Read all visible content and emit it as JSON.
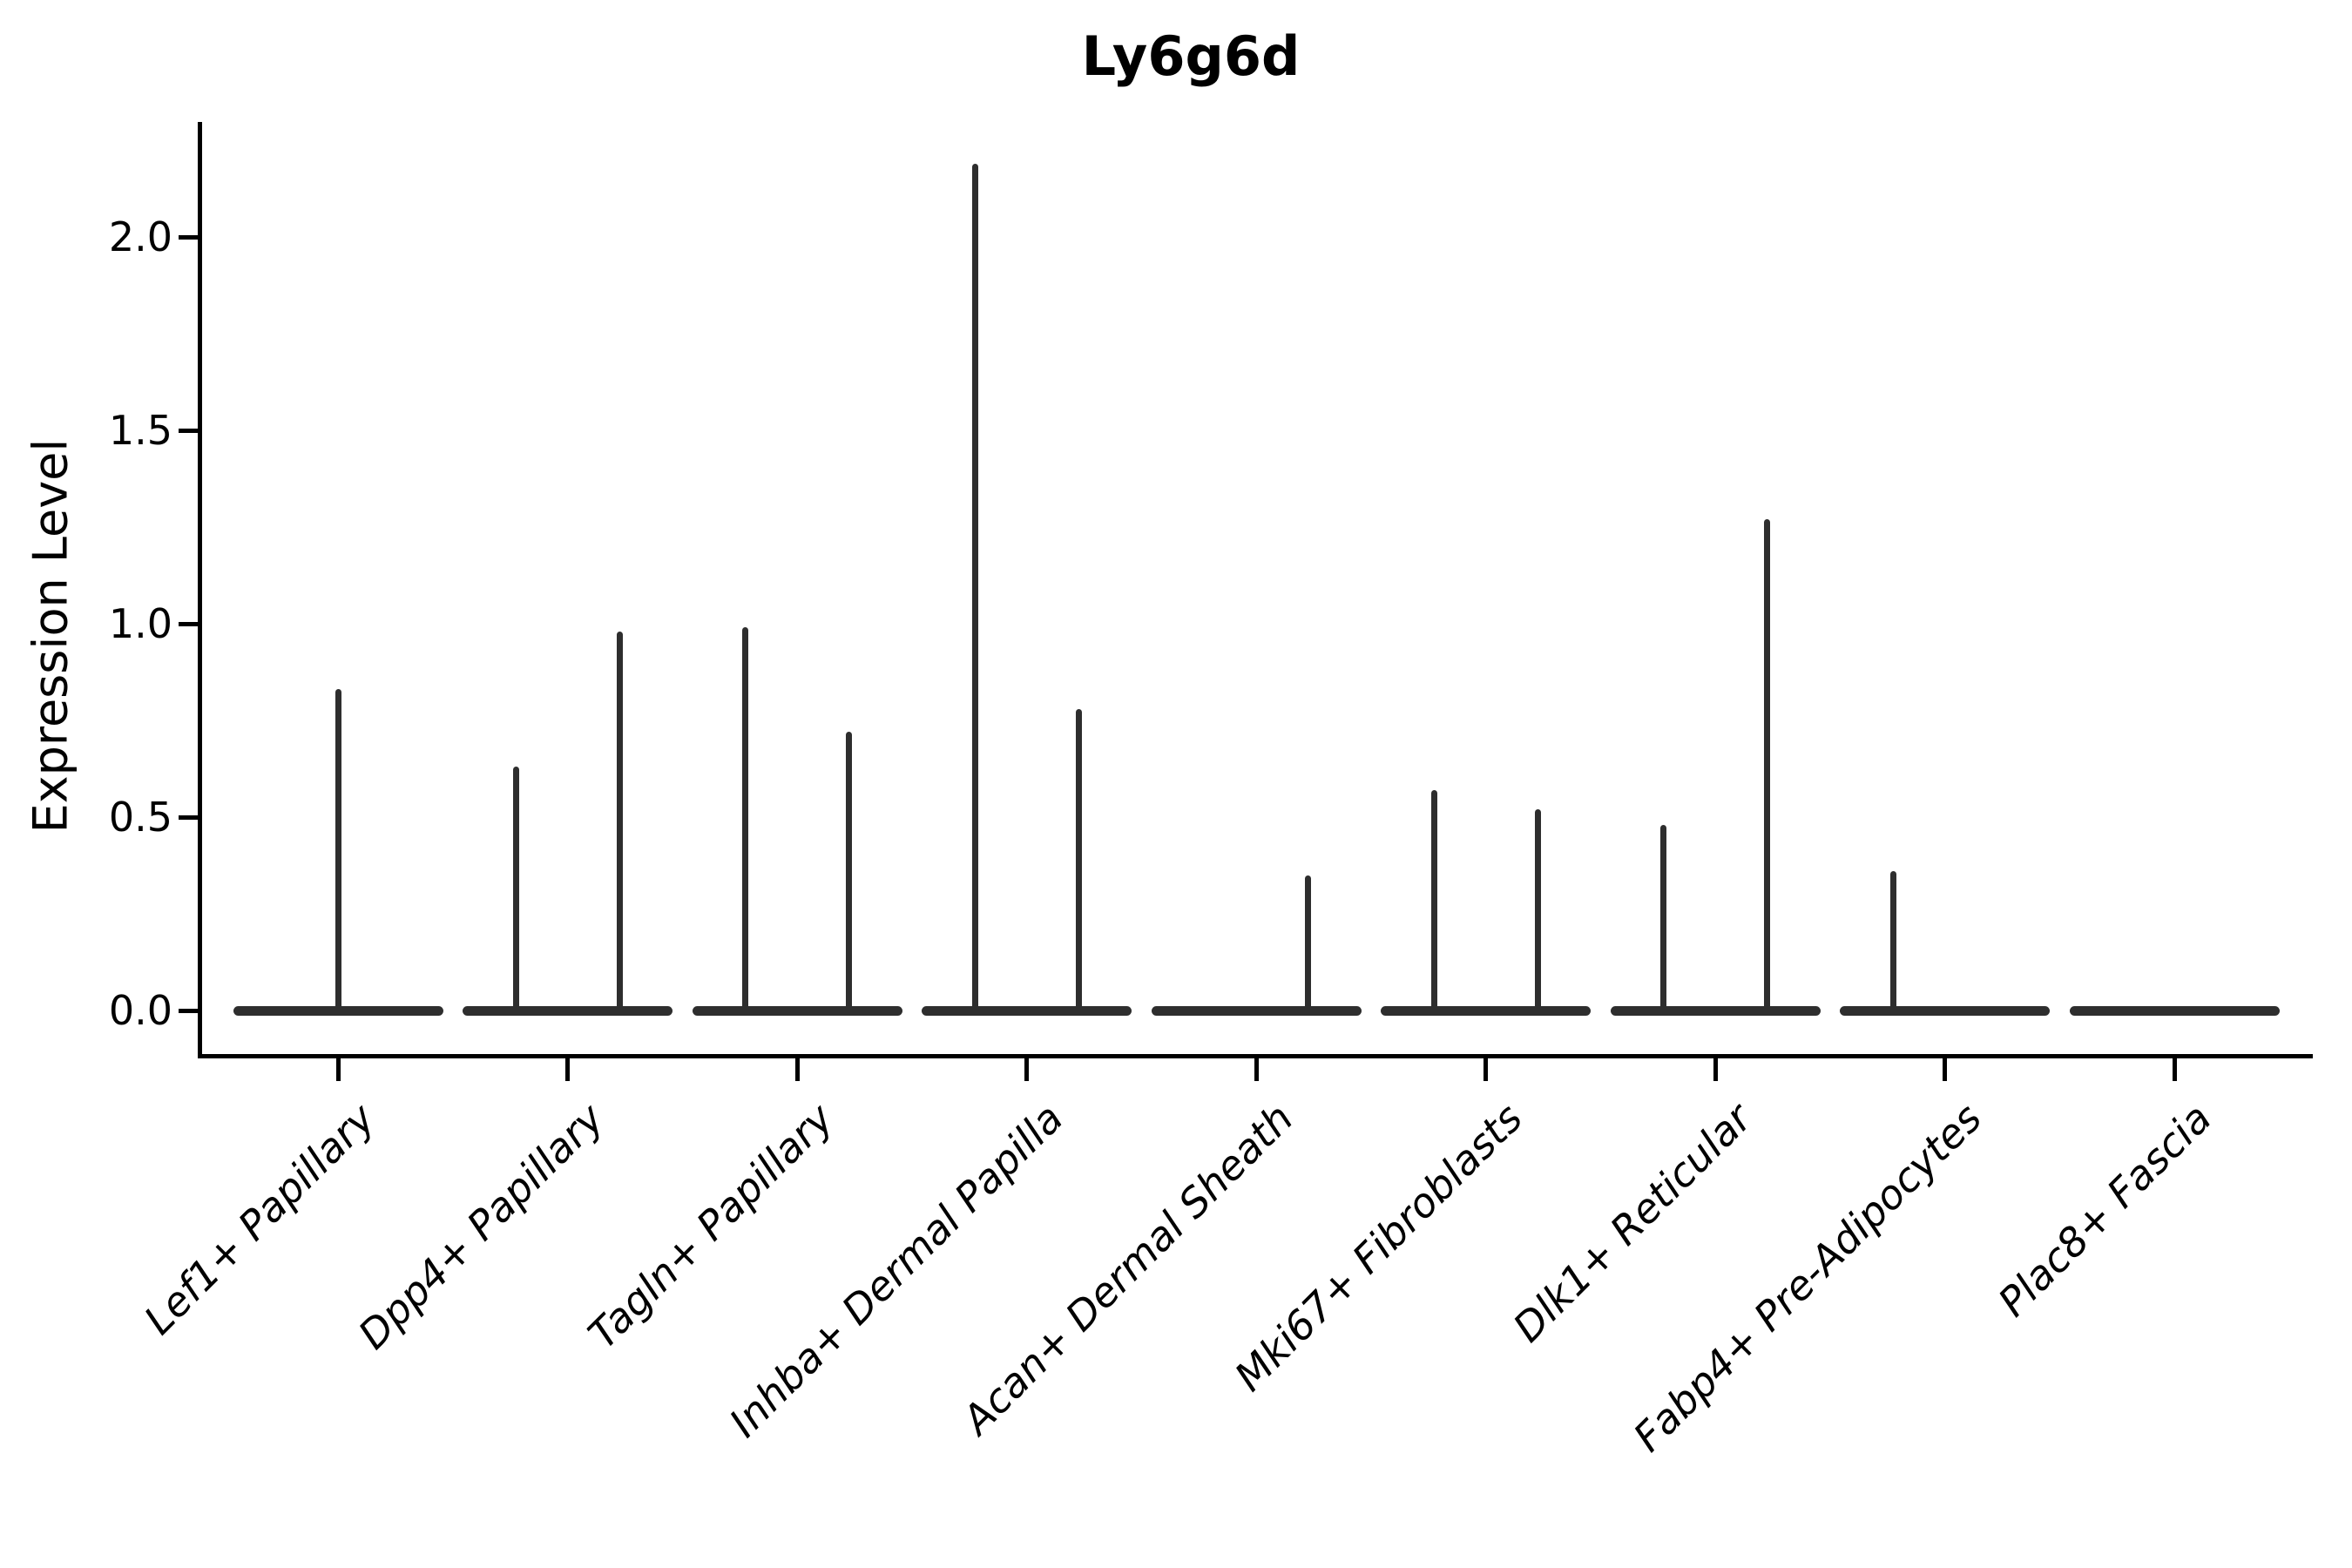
{
  "chart_data": {
    "type": "violin",
    "title": "Ly6g6d",
    "ylabel": "Expression Level",
    "xlabel": "",
    "yticks": [
      "0.0",
      "0.5",
      "1.0",
      "1.5",
      "2.0"
    ],
    "ylim": [
      -0.11,
      2.3
    ],
    "grid": false,
    "legend": null,
    "violin_color": "#2e2e2e",
    "categories": [
      "Lef1+ Papillary",
      "Dpp4+ Papillary",
      "Tagln+ Papillary",
      "Inhba+ Dermal Papilla",
      "Acan+ Dermal Sheath",
      "Mki67+ Fibroblasts",
      "Dlk1+ Reticular",
      "Fabp4+ Pre-Adipocytes",
      "Plac8+ Fascia"
    ],
    "violins": [
      {
        "category": "Lef1+ Papillary",
        "baseline_at_zero": true,
        "spikes": [
          {
            "position": "center",
            "max": 0.83
          }
        ]
      },
      {
        "category": "Dpp4+ Papillary",
        "baseline_at_zero": true,
        "spikes": [
          {
            "position": "left",
            "max": 0.63
          },
          {
            "position": "right",
            "max": 0.98
          }
        ]
      },
      {
        "category": "Tagln+ Papillary",
        "baseline_at_zero": true,
        "spikes": [
          {
            "position": "left",
            "max": 0.99
          },
          {
            "position": "right",
            "max": 0.72
          }
        ]
      },
      {
        "category": "Inhba+ Dermal Papilla",
        "baseline_at_zero": true,
        "spikes": [
          {
            "position": "left",
            "max": 2.19
          },
          {
            "position": "right",
            "max": 0.78
          }
        ]
      },
      {
        "category": "Acan+ Dermal Sheath",
        "baseline_at_zero": true,
        "spikes": [
          {
            "position": "right",
            "max": 0.35
          }
        ]
      },
      {
        "category": "Mki67+ Fibroblasts",
        "baseline_at_zero": true,
        "spikes": [
          {
            "position": "left",
            "max": 0.57
          },
          {
            "position": "right",
            "max": 0.52
          }
        ]
      },
      {
        "category": "Dlk1+ Reticular",
        "baseline_at_zero": true,
        "spikes": [
          {
            "position": "left",
            "max": 0.48
          },
          {
            "position": "right",
            "max": 1.27
          }
        ]
      },
      {
        "category": "Fabp4+ Pre-Adipocytes",
        "baseline_at_zero": true,
        "spikes": [
          {
            "position": "left",
            "max": 0.36
          }
        ]
      },
      {
        "category": "Plac8+ Fascia",
        "baseline_at_zero": true,
        "spikes": []
      }
    ]
  }
}
